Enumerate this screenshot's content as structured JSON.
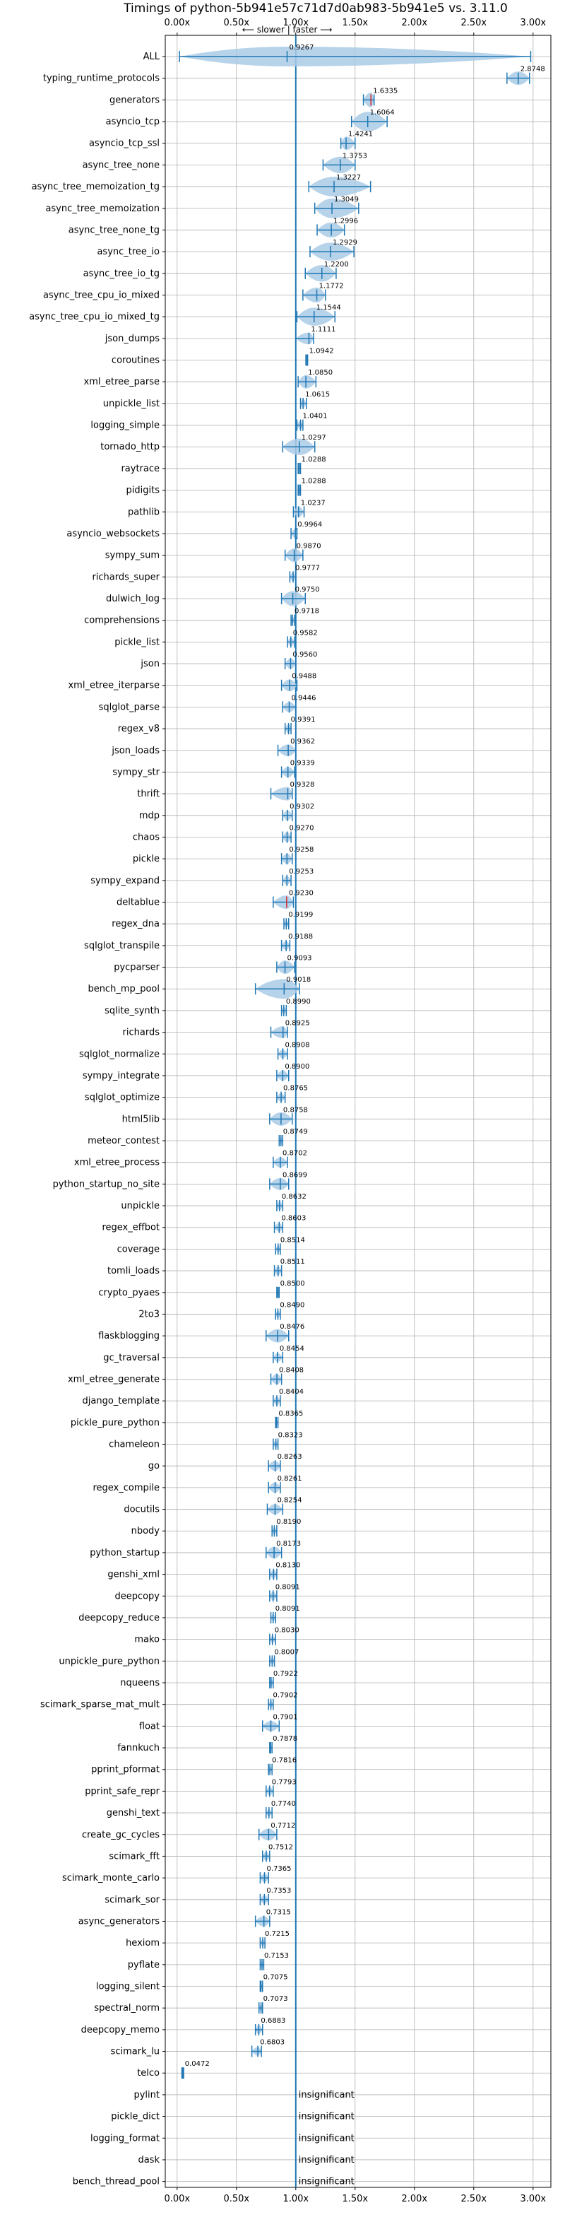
{
  "chart_data": {
    "type": "scatter",
    "title": "Timings of python-5b941e57c71d7d0ab983-5b941e5 vs. 3.11.0",
    "direction_label": "⟵ slower | faster ⟶",
    "xlim": [
      -0.1,
      3.15
    ],
    "xticks": [
      {
        "v": 0.0,
        "label": "0.00x"
      },
      {
        "v": 0.5,
        "label": "0.50x"
      },
      {
        "v": 1.0,
        "label": "1.00x"
      },
      {
        "v": 1.5,
        "label": "1.50x"
      },
      {
        "v": 2.0,
        "label": "2.00x"
      },
      {
        "v": 2.5,
        "label": "2.50x"
      },
      {
        "v": 3.0,
        "label": "3.00x"
      }
    ],
    "grid": true,
    "reference_line": 1.0,
    "insignificant_label": "insignificant",
    "colors": {
      "main": "#1f77b4",
      "violin": "#aacbe6",
      "highlight": "#d62728",
      "grid": "#b0b0b0"
    },
    "benchmarks": [
      {
        "name": "ALL",
        "value": 0.9267,
        "label": "0.9267",
        "lo": 0.02,
        "hi": 2.98,
        "w": 0.1
      },
      {
        "name": "typing_runtime_protocols",
        "value": 2.8748,
        "label": "2.8748",
        "lo": 2.78,
        "hi": 2.97,
        "w": 0.05
      },
      {
        "name": "generators",
        "value": 1.6335,
        "label": "1.6335",
        "lo": 1.57,
        "hi": 1.66,
        "w": 0.06,
        "red": true
      },
      {
        "name": "asyncio_tcp",
        "value": 1.6064,
        "label": "1.6064",
        "lo": 1.47,
        "hi": 1.77,
        "w": 0.09
      },
      {
        "name": "asyncio_tcp_ssl",
        "value": 1.4241,
        "label": "1.4241",
        "lo": 1.38,
        "hi": 1.5,
        "w": 0.05
      },
      {
        "name": "async_tree_none",
        "value": 1.3753,
        "label": "1.3753",
        "lo": 1.23,
        "hi": 1.5,
        "w": 0.07
      },
      {
        "name": "async_tree_memoization_tg",
        "value": 1.3227,
        "label": "1.3227",
        "lo": 1.11,
        "hi": 1.63,
        "w": 0.12
      },
      {
        "name": "async_tree_memoization",
        "value": 1.3049,
        "label": "1.3049",
        "lo": 1.16,
        "hi": 1.53,
        "w": 0.09
      },
      {
        "name": "async_tree_none_tg",
        "value": 1.2996,
        "label": "1.2996",
        "lo": 1.18,
        "hi": 1.41,
        "w": 0.06
      },
      {
        "name": "async_tree_io",
        "value": 1.2929,
        "label": "1.2929",
        "lo": 1.12,
        "hi": 1.49,
        "w": 0.08
      },
      {
        "name": "async_tree_io_tg",
        "value": 1.22,
        "label": "1.2200",
        "lo": 1.08,
        "hi": 1.34,
        "w": 0.07
      },
      {
        "name": "async_tree_cpu_io_mixed",
        "value": 1.1772,
        "label": "1.1772",
        "lo": 1.06,
        "hi": 1.25,
        "w": 0.06
      },
      {
        "name": "async_tree_cpu_io_mixed_tg",
        "value": 1.1544,
        "label": "1.1544",
        "lo": 1.01,
        "hi": 1.33,
        "w": 0.08
      },
      {
        "name": "json_dumps",
        "value": 1.1111,
        "label": "1.1111",
        "lo": 1.0,
        "hi": 1.15,
        "w": 0.04
      },
      {
        "name": "coroutines",
        "value": 1.0942,
        "label": "1.0942",
        "lo": 1.085,
        "hi": 1.1,
        "w": 0.01
      },
      {
        "name": "xml_etree_parse",
        "value": 1.085,
        "label": "1.0850",
        "lo": 1.02,
        "hi": 1.17,
        "w": 0.05
      },
      {
        "name": "unpickle_list",
        "value": 1.0615,
        "label": "1.0615",
        "lo": 1.04,
        "hi": 1.09,
        "w": 0.02
      },
      {
        "name": "logging_simple",
        "value": 1.0401,
        "label": "1.0401",
        "lo": 1.01,
        "hi": 1.06,
        "w": 0.02
      },
      {
        "name": "tornado_http",
        "value": 1.0297,
        "label": "1.0297",
        "lo": 0.89,
        "hi": 1.16,
        "w": 0.07
      },
      {
        "name": "raytrace",
        "value": 1.0288,
        "label": "1.0288",
        "lo": 1.02,
        "hi": 1.04,
        "w": 0.01
      },
      {
        "name": "pidigits",
        "value": 1.0288,
        "label": "1.0288",
        "lo": 1.02,
        "hi": 1.04,
        "w": 0.01
      },
      {
        "name": "pathlib",
        "value": 1.0237,
        "label": "1.0237",
        "lo": 0.98,
        "hi": 1.07,
        "w": 0.03
      },
      {
        "name": "asyncio_websockets",
        "value": 0.9964,
        "label": "0.9964",
        "lo": 0.96,
        "hi": 1.01,
        "w": 0.02
      },
      {
        "name": "sympy_sum",
        "value": 0.987,
        "label": "0.9870",
        "lo": 0.91,
        "hi": 1.06,
        "w": 0.05
      },
      {
        "name": "richards_super",
        "value": 0.9777,
        "label": "0.9777",
        "lo": 0.95,
        "hi": 1.0,
        "w": 0.02
      },
      {
        "name": "dulwich_log",
        "value": 0.975,
        "label": "0.9750",
        "lo": 0.88,
        "hi": 1.08,
        "w": 0.06
      },
      {
        "name": "comprehensions",
        "value": 0.9718,
        "label": "0.9718",
        "lo": 0.96,
        "hi": 0.99,
        "w": 0.01
      },
      {
        "name": "pickle_list",
        "value": 0.9582,
        "label": "0.9582",
        "lo": 0.93,
        "hi": 0.99,
        "w": 0.02
      },
      {
        "name": "json",
        "value": 0.956,
        "label": "0.9560",
        "lo": 0.91,
        "hi": 1.0,
        "w": 0.03
      },
      {
        "name": "xml_etree_iterparse",
        "value": 0.9488,
        "label": "0.9488",
        "lo": 0.88,
        "hi": 1.01,
        "w": 0.04
      },
      {
        "name": "sqlglot_parse",
        "value": 0.9446,
        "label": "0.9446",
        "lo": 0.89,
        "hi": 1.0,
        "w": 0.03
      },
      {
        "name": "regex_v8",
        "value": 0.9391,
        "label": "0.9391",
        "lo": 0.91,
        "hi": 0.96,
        "w": 0.02
      },
      {
        "name": "json_loads",
        "value": 0.9362,
        "label": "0.9362",
        "lo": 0.85,
        "hi": 1.0,
        "w": 0.04
      },
      {
        "name": "sympy_str",
        "value": 0.9339,
        "label": "0.9339",
        "lo": 0.88,
        "hi": 0.99,
        "w": 0.03
      },
      {
        "name": "thrift",
        "value": 0.9328,
        "label": "0.9328",
        "lo": 0.79,
        "hi": 0.97,
        "w": 0.05
      },
      {
        "name": "mdp",
        "value": 0.9302,
        "label": "0.9302",
        "lo": 0.89,
        "hi": 0.97,
        "w": 0.03
      },
      {
        "name": "chaos",
        "value": 0.927,
        "label": "0.9270",
        "lo": 0.89,
        "hi": 0.96,
        "w": 0.03
      },
      {
        "name": "pickle",
        "value": 0.9258,
        "label": "0.9258",
        "lo": 0.88,
        "hi": 0.97,
        "w": 0.03
      },
      {
        "name": "sympy_expand",
        "value": 0.9253,
        "label": "0.9253",
        "lo": 0.89,
        "hi": 0.96,
        "w": 0.02
      },
      {
        "name": "deltablue",
        "value": 0.923,
        "label": "0.9230",
        "lo": 0.81,
        "hi": 0.98,
        "w": 0.05,
        "red": true
      },
      {
        "name": "regex_dna",
        "value": 0.9199,
        "label": "0.9199",
        "lo": 0.9,
        "hi": 0.94,
        "w": 0.01
      },
      {
        "name": "sqlglot_transpile",
        "value": 0.9188,
        "label": "0.9188",
        "lo": 0.88,
        "hi": 0.95,
        "w": 0.02
      },
      {
        "name": "pycparser",
        "value": 0.9093,
        "label": "0.9093",
        "lo": 0.84,
        "hi": 0.99,
        "w": 0.05
      },
      {
        "name": "bench_mp_pool",
        "value": 0.9018,
        "label": "0.9018",
        "lo": 0.66,
        "hi": 1.03,
        "w": 0.09
      },
      {
        "name": "sqlite_synth",
        "value": 0.899,
        "label": "0.8990",
        "lo": 0.88,
        "hi": 0.92,
        "w": 0.01
      },
      {
        "name": "richards",
        "value": 0.8925,
        "label": "0.8925",
        "lo": 0.79,
        "hi": 0.93,
        "w": 0.04
      },
      {
        "name": "sqlglot_normalize",
        "value": 0.8908,
        "label": "0.8908",
        "lo": 0.85,
        "hi": 0.93,
        "w": 0.02
      },
      {
        "name": "sympy_integrate",
        "value": 0.89,
        "label": "0.8900",
        "lo": 0.84,
        "hi": 0.94,
        "w": 0.03
      },
      {
        "name": "sqlglot_optimize",
        "value": 0.8765,
        "label": "0.8765",
        "lo": 0.84,
        "hi": 0.91,
        "w": 0.02
      },
      {
        "name": "html5lib",
        "value": 0.8758,
        "label": "0.8758",
        "lo": 0.78,
        "hi": 0.97,
        "w": 0.05
      },
      {
        "name": "meteor_contest",
        "value": 0.8749,
        "label": "0.8749",
        "lo": 0.86,
        "hi": 0.89,
        "w": 0.01
      },
      {
        "name": "xml_etree_process",
        "value": 0.8702,
        "label": "0.8702",
        "lo": 0.81,
        "hi": 0.93,
        "w": 0.03
      },
      {
        "name": "python_startup_no_site",
        "value": 0.8699,
        "label": "0.8699",
        "lo": 0.78,
        "hi": 0.94,
        "w": 0.04
      },
      {
        "name": "unpickle",
        "value": 0.8632,
        "label": "0.8632",
        "lo": 0.84,
        "hi": 0.89,
        "w": 0.02
      },
      {
        "name": "regex_effbot",
        "value": 0.8603,
        "label": "0.8603",
        "lo": 0.82,
        "hi": 0.89,
        "w": 0.02
      },
      {
        "name": "coverage",
        "value": 0.8514,
        "label": "0.8514",
        "lo": 0.83,
        "hi": 0.87,
        "w": 0.01
      },
      {
        "name": "tomli_loads",
        "value": 0.8511,
        "label": "0.8511",
        "lo": 0.82,
        "hi": 0.88,
        "w": 0.02
      },
      {
        "name": "crypto_pyaes",
        "value": 0.85,
        "label": "0.8500",
        "lo": 0.84,
        "hi": 0.86,
        "w": 0.01
      },
      {
        "name": "2to3",
        "value": 0.849,
        "label": "0.8490",
        "lo": 0.83,
        "hi": 0.87,
        "w": 0.01
      },
      {
        "name": "flaskblogging",
        "value": 0.8476,
        "label": "0.8476",
        "lo": 0.75,
        "hi": 0.94,
        "w": 0.05
      },
      {
        "name": "gc_traversal",
        "value": 0.8454,
        "label": "0.8454",
        "lo": 0.81,
        "hi": 0.89,
        "w": 0.02
      },
      {
        "name": "xml_etree_generate",
        "value": 0.8408,
        "label": "0.8408",
        "lo": 0.79,
        "hi": 0.88,
        "w": 0.03
      },
      {
        "name": "django_template",
        "value": 0.8404,
        "label": "0.8404",
        "lo": 0.81,
        "hi": 0.87,
        "w": 0.02
      },
      {
        "name": "pickle_pure_python",
        "value": 0.8365,
        "label": "0.8365",
        "lo": 0.83,
        "hi": 0.85,
        "w": 0.01
      },
      {
        "name": "chameleon",
        "value": 0.8323,
        "label": "0.8323",
        "lo": 0.81,
        "hi": 0.85,
        "w": 0.01
      },
      {
        "name": "go",
        "value": 0.8263,
        "label": "0.8263",
        "lo": 0.77,
        "hi": 0.87,
        "w": 0.03
      },
      {
        "name": "regex_compile",
        "value": 0.8261,
        "label": "0.8261",
        "lo": 0.77,
        "hi": 0.87,
        "w": 0.03
      },
      {
        "name": "docutils",
        "value": 0.8254,
        "label": "0.8254",
        "lo": 0.76,
        "hi": 0.89,
        "w": 0.03
      },
      {
        "name": "nbody",
        "value": 0.819,
        "label": "0.8190",
        "lo": 0.8,
        "hi": 0.84,
        "w": 0.01
      },
      {
        "name": "python_startup",
        "value": 0.8173,
        "label": "0.8173",
        "lo": 0.75,
        "hi": 0.88,
        "w": 0.04
      },
      {
        "name": "genshi_xml",
        "value": 0.813,
        "label": "0.8130",
        "lo": 0.78,
        "hi": 0.84,
        "w": 0.02
      },
      {
        "name": "deepcopy",
        "value": 0.8091,
        "label": "0.8091",
        "lo": 0.78,
        "hi": 0.84,
        "w": 0.02
      },
      {
        "name": "deepcopy_reduce",
        "value": 0.8091,
        "label": "0.8091",
        "lo": 0.79,
        "hi": 0.83,
        "w": 0.01
      },
      {
        "name": "mako",
        "value": 0.803,
        "label": "0.8030",
        "lo": 0.78,
        "hi": 0.83,
        "w": 0.01
      },
      {
        "name": "unpickle_pure_python",
        "value": 0.8007,
        "label": "0.8007",
        "lo": 0.78,
        "hi": 0.82,
        "w": 0.01
      },
      {
        "name": "nqueens",
        "value": 0.7922,
        "label": "0.7922",
        "lo": 0.78,
        "hi": 0.81,
        "w": 0.01
      },
      {
        "name": "scimark_sparse_mat_mult",
        "value": 0.7902,
        "label": "0.7902",
        "lo": 0.77,
        "hi": 0.81,
        "w": 0.01
      },
      {
        "name": "float",
        "value": 0.7901,
        "label": "0.7901",
        "lo": 0.72,
        "hi": 0.86,
        "w": 0.03
      },
      {
        "name": "fannkuch",
        "value": 0.7878,
        "label": "0.7878",
        "lo": 0.78,
        "hi": 0.8,
        "w": 0.01
      },
      {
        "name": "pprint_pformat",
        "value": 0.7816,
        "label": "0.7816",
        "lo": 0.77,
        "hi": 0.8,
        "w": 0.01
      },
      {
        "name": "pprint_safe_repr",
        "value": 0.7793,
        "label": "0.7793",
        "lo": 0.75,
        "hi": 0.81,
        "w": 0.02
      },
      {
        "name": "genshi_text",
        "value": 0.774,
        "label": "0.7740",
        "lo": 0.75,
        "hi": 0.8,
        "w": 0.01
      },
      {
        "name": "create_gc_cycles",
        "value": 0.7712,
        "label": "0.7712",
        "lo": 0.69,
        "hi": 0.84,
        "w": 0.04
      },
      {
        "name": "scimark_fft",
        "value": 0.7512,
        "label": "0.7512",
        "lo": 0.72,
        "hi": 0.78,
        "w": 0.02
      },
      {
        "name": "scimark_monte_carlo",
        "value": 0.7365,
        "label": "0.7365",
        "lo": 0.7,
        "hi": 0.77,
        "w": 0.02
      },
      {
        "name": "scimark_sor",
        "value": 0.7353,
        "label": "0.7353",
        "lo": 0.7,
        "hi": 0.77,
        "w": 0.02
      },
      {
        "name": "async_generators",
        "value": 0.7315,
        "label": "0.7315",
        "lo": 0.66,
        "hi": 0.78,
        "w": 0.03
      },
      {
        "name": "hexiom",
        "value": 0.7215,
        "label": "0.7215",
        "lo": 0.7,
        "hi": 0.74,
        "w": 0.01
      },
      {
        "name": "pyflate",
        "value": 0.7153,
        "label": "0.7153",
        "lo": 0.7,
        "hi": 0.73,
        "w": 0.01
      },
      {
        "name": "logging_silent",
        "value": 0.7075,
        "label": "0.7075",
        "lo": 0.7,
        "hi": 0.72,
        "w": 0.005
      },
      {
        "name": "spectral_norm",
        "value": 0.7073,
        "label": "0.7073",
        "lo": 0.69,
        "hi": 0.72,
        "w": 0.01
      },
      {
        "name": "deepcopy_memo",
        "value": 0.6883,
        "label": "0.6883",
        "lo": 0.66,
        "hi": 0.72,
        "w": 0.02
      },
      {
        "name": "scimark_lu",
        "value": 0.6803,
        "label": "0.6803",
        "lo": 0.63,
        "hi": 0.71,
        "w": 0.02
      },
      {
        "name": "telco",
        "value": 0.0472,
        "label": "0.0472",
        "lo": 0.04,
        "hi": 0.055,
        "w": 0.005
      },
      {
        "name": "pylint",
        "insignificant": true
      },
      {
        "name": "pickle_dict",
        "insignificant": true
      },
      {
        "name": "logging_format",
        "insignificant": true
      },
      {
        "name": "dask",
        "insignificant": true
      },
      {
        "name": "bench_thread_pool",
        "insignificant": true
      }
    ]
  }
}
